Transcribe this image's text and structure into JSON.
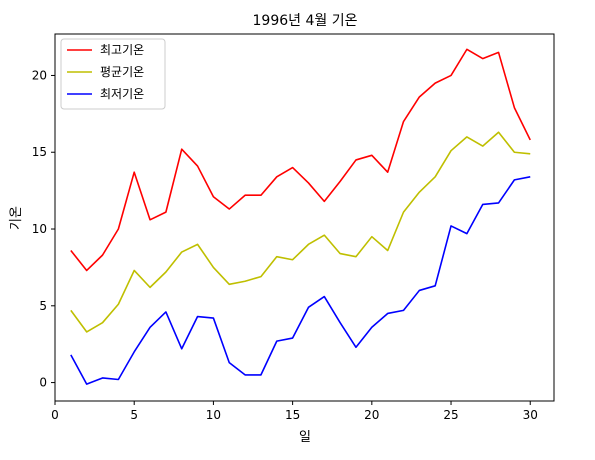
{
  "chart_data": {
    "type": "line",
    "title": "1996년 4월 기온",
    "xlabel": "일",
    "ylabel": "기온",
    "xlim": [
      0,
      31.5
    ],
    "ylim": [
      -1.2,
      22.7
    ],
    "xticks": [
      0,
      5,
      10,
      15,
      20,
      25,
      30
    ],
    "yticks": [
      0,
      5,
      10,
      15,
      20
    ],
    "grid": false,
    "legend_position": "top-left",
    "x": [
      1,
      2,
      3,
      4,
      5,
      6,
      7,
      8,
      9,
      10,
      11,
      12,
      13,
      14,
      15,
      16,
      17,
      18,
      19,
      20,
      21,
      22,
      23,
      24,
      25,
      26,
      27,
      28,
      29,
      30
    ],
    "series": [
      {
        "name": "최고기온",
        "color": "#ff0000",
        "values": [
          8.6,
          7.3,
          8.3,
          10.0,
          13.7,
          10.6,
          11.1,
          15.2,
          14.1,
          12.1,
          11.3,
          12.2,
          12.2,
          13.4,
          14.0,
          13.0,
          11.8,
          13.1,
          14.5,
          14.8,
          13.7,
          17.0,
          18.6,
          19.5,
          20.0,
          21.7,
          21.1,
          21.5,
          17.9,
          15.8
        ]
      },
      {
        "name": "평균기온",
        "color": "#bfbf00",
        "values": [
          4.7,
          3.3,
          3.9,
          5.1,
          7.3,
          6.2,
          7.2,
          8.5,
          9.0,
          7.5,
          6.4,
          6.6,
          6.9,
          8.2,
          8.0,
          9.0,
          9.6,
          8.4,
          8.2,
          9.5,
          8.6,
          11.1,
          12.4,
          13.4,
          15.1,
          16.0,
          15.4,
          16.3,
          15.0,
          14.9
        ]
      },
      {
        "name": "최저기온",
        "color": "#0000ff",
        "values": [
          1.8,
          -0.1,
          0.3,
          0.2,
          2.0,
          3.6,
          4.6,
          2.2,
          4.3,
          4.2,
          1.3,
          0.5,
          0.5,
          2.7,
          2.9,
          4.9,
          5.6,
          3.9,
          2.3,
          3.6,
          4.5,
          4.7,
          6.0,
          6.3,
          10.2,
          9.7,
          11.6,
          11.7,
          13.2,
          13.4
        ]
      }
    ]
  }
}
